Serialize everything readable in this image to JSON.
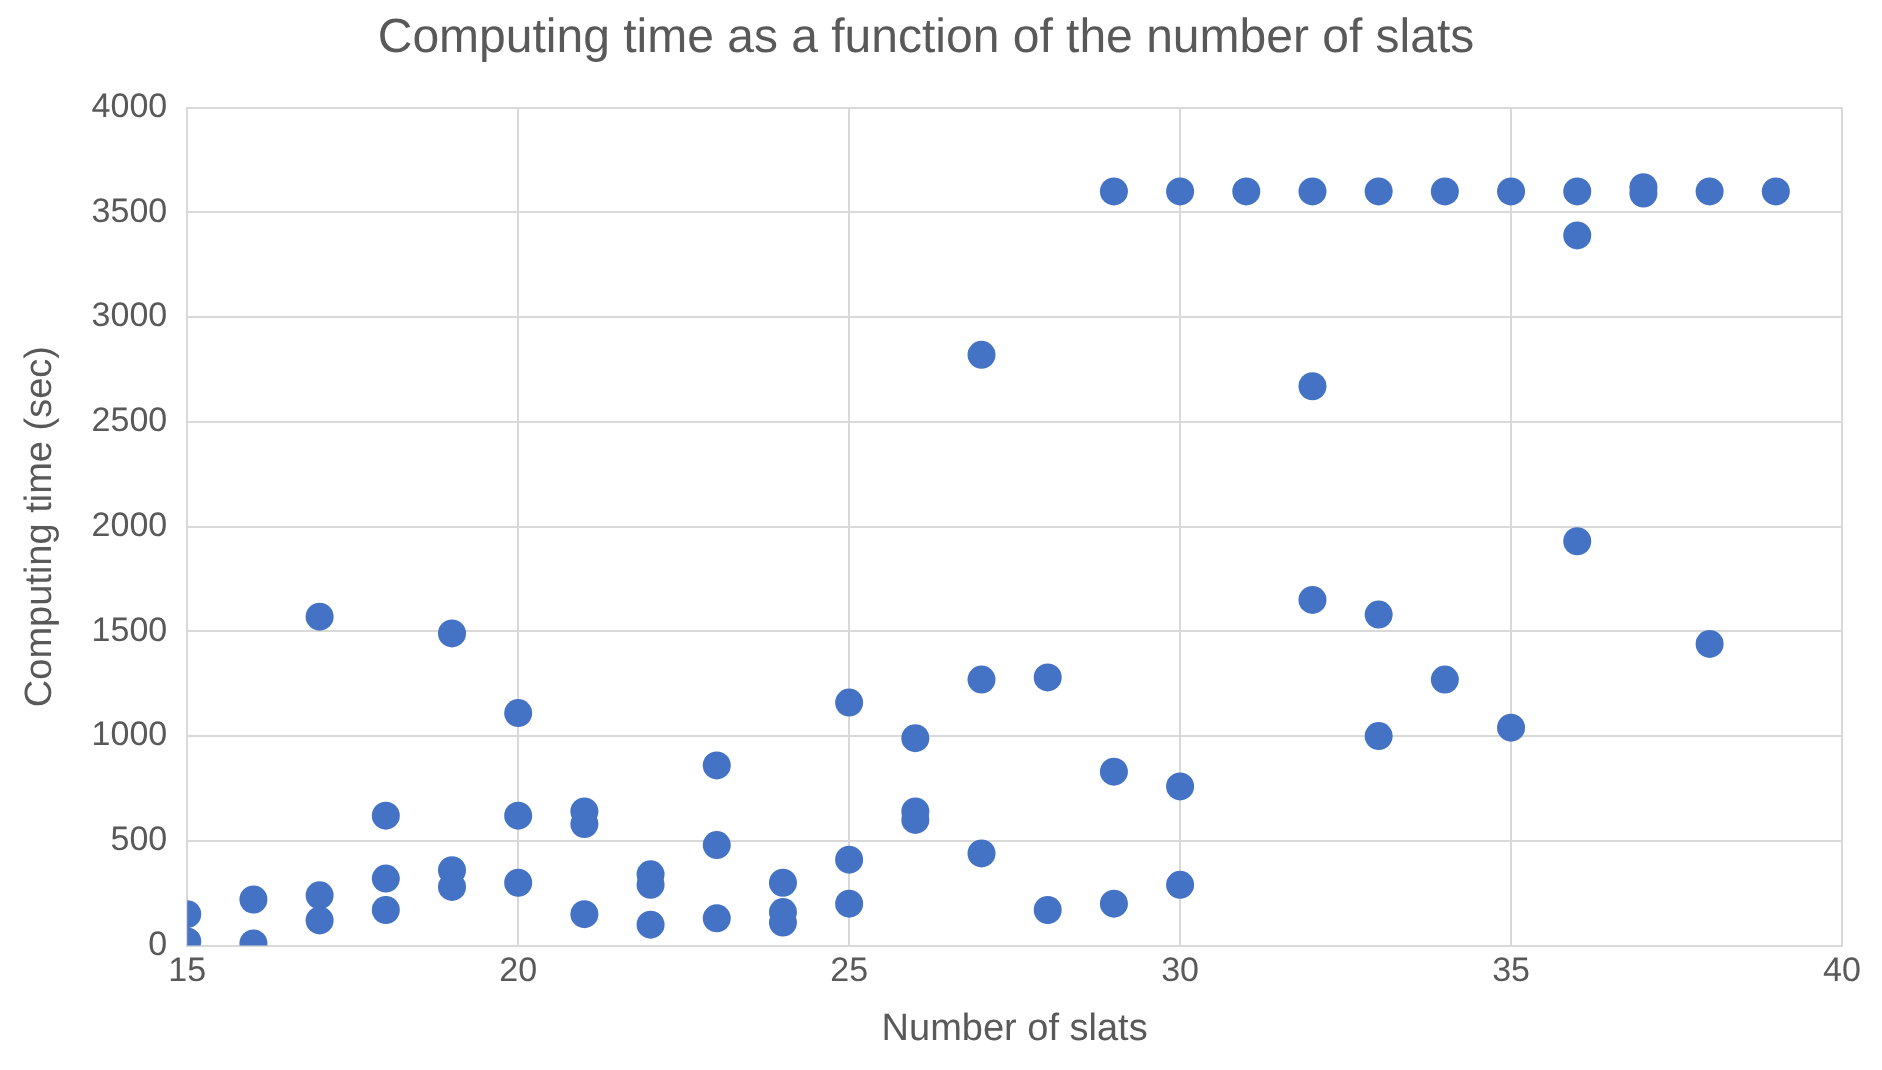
{
  "chart_data": {
    "type": "scatter",
    "title": "Computing time as a function of the number of slats",
    "xlabel": "Number of slats",
    "ylabel": "Computing time (sec)",
    "x": [
      15,
      15,
      16,
      16,
      17,
      17,
      17,
      18,
      18,
      18,
      19,
      19,
      19,
      20,
      20,
      20,
      21,
      21,
      21,
      22,
      22,
      22,
      23,
      23,
      23,
      24,
      24,
      24,
      25,
      25,
      25,
      26,
      26,
      26,
      27,
      27,
      27,
      28,
      28,
      29,
      29,
      29,
      30,
      30,
      30,
      31,
      32,
      32,
      32,
      33,
      33,
      33,
      34,
      34,
      35,
      35,
      36,
      36,
      36,
      37,
      37,
      38,
      38,
      39
    ],
    "series": [
      {
        "color": "#4472c4",
        "values": [
          150,
          20,
          220,
          10,
          1570,
          240,
          120,
          620,
          320,
          170,
          1490,
          360,
          280,
          1110,
          620,
          300,
          640,
          580,
          150,
          340,
          290,
          100,
          860,
          480,
          130,
          300,
          160,
          110,
          1160,
          410,
          200,
          990,
          640,
          600,
          2820,
          1270,
          440,
          1280,
          170,
          3600,
          830,
          200,
          3600,
          760,
          290,
          3600,
          3600,
          2670,
          1650,
          3600,
          1580,
          1000,
          3600,
          1270,
          3600,
          1040,
          3600,
          3390,
          1930,
          3620,
          3590,
          3600,
          1440,
          3600
        ]
      }
    ],
    "xlim": [
      15,
      40
    ],
    "xticks": [
      15,
      20,
      25,
      30,
      35,
      40
    ],
    "ylim": [
      0,
      4000
    ],
    "yticks": [
      0,
      500,
      1000,
      1500,
      2000,
      2500,
      3000,
      3500,
      4000
    ],
    "grid": true,
    "legend": false,
    "marker": "circle"
  }
}
